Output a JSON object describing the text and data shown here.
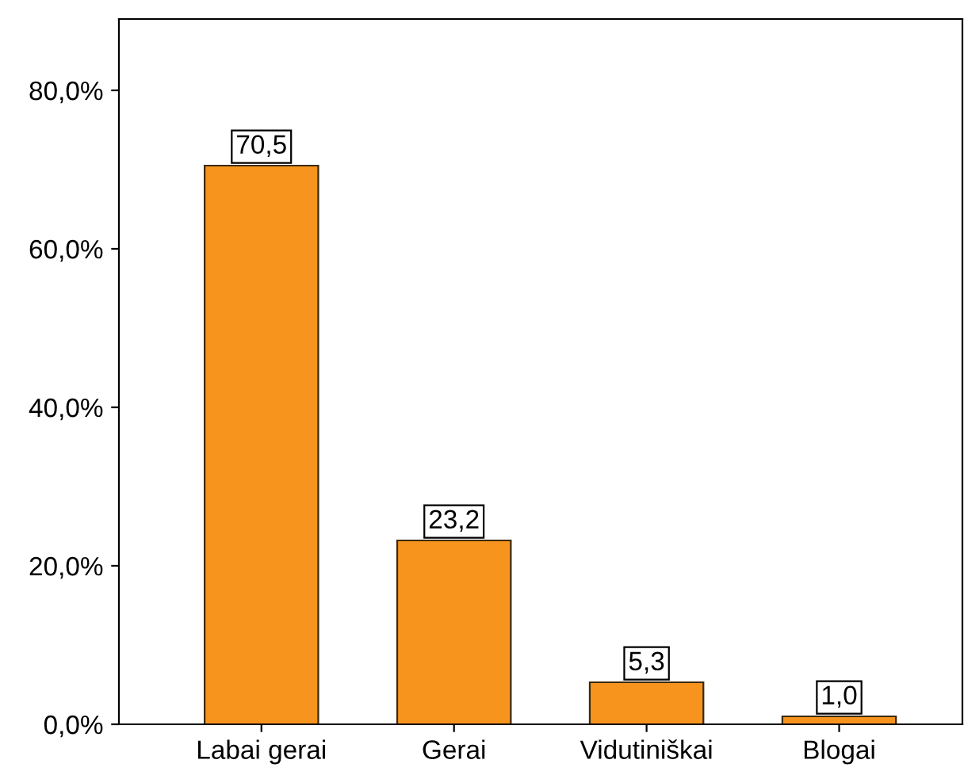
{
  "chart_data": {
    "type": "bar",
    "categories": [
      "Labai gerai",
      "Gerai",
      "Vidutiniškai",
      "Blogai"
    ],
    "values": [
      70.5,
      23.2,
      5.3,
      1.0
    ],
    "value_labels": [
      "70,5",
      "23,2",
      "5,3",
      "1,0"
    ],
    "color": "#f7941d",
    "ylim": [
      0,
      89
    ],
    "yticks": [
      {
        "value": 0,
        "label": "0,0%"
      },
      {
        "value": 20,
        "label": "20,0%"
      },
      {
        "value": 40,
        "label": "40,0%"
      },
      {
        "value": 60,
        "label": "60,0%"
      },
      {
        "value": 80,
        "label": "80,0%"
      }
    ],
    "grid": false,
    "legend": false
  }
}
